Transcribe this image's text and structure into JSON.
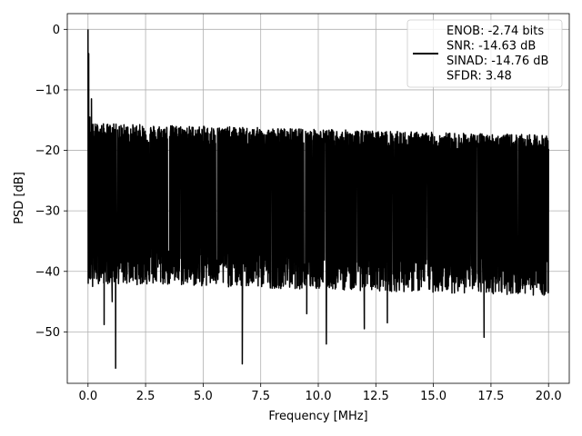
{
  "chart_data": {
    "type": "line",
    "title": "",
    "xlabel": "Frequency [MHz]",
    "ylabel": "PSD [dB]",
    "xlim": [
      -0.9,
      20.9
    ],
    "ylim": [
      -58.5,
      2.6
    ],
    "xticks": [
      0.0,
      2.5,
      5.0,
      7.5,
      10.0,
      12.5,
      15.0,
      17.5,
      20.0
    ],
    "xtick_labels": [
      "0.0",
      "2.5",
      "5.0",
      "7.5",
      "10.0",
      "12.5",
      "15.0",
      "17.5",
      "20.0"
    ],
    "yticks": [
      0,
      -10,
      -20,
      -30,
      -40,
      -50
    ],
    "ytick_labels": [
      "0",
      "−10",
      "−20",
      "−30",
      "−40",
      "−50"
    ],
    "grid": true,
    "legend_placement": "top-right",
    "series": [
      {
        "color": "#000000",
        "x_range": [
          0,
          20
        ],
        "noise_band": [
          -36,
          -17
        ],
        "peak_spikes": [
          [
            0.0,
            0.0
          ],
          [
            0.03,
            -4.0
          ],
          [
            0.08,
            -14.5
          ],
          [
            0.15,
            -11.5
          ],
          [
            0.2,
            -42.5
          ],
          [
            0.3,
            -36.5
          ],
          [
            0.55,
            -40.3
          ],
          [
            0.7,
            -48.8
          ],
          [
            1.2,
            -56.0
          ],
          [
            1.05,
            -45.0
          ],
          [
            6.7,
            -55.3
          ],
          [
            10.35,
            -52.0
          ],
          [
            17.2,
            -50.9
          ],
          [
            9.5,
            -47.0
          ],
          [
            12.0,
            -49.5
          ],
          [
            13.0,
            -48.5
          ]
        ]
      }
    ],
    "legend": {
      "lines": [
        "ENOB: -2.74 bits",
        "SNR: -14.63 dB",
        "SINAD: -14.76 dB",
        "SFDR: 3.48"
      ]
    }
  }
}
